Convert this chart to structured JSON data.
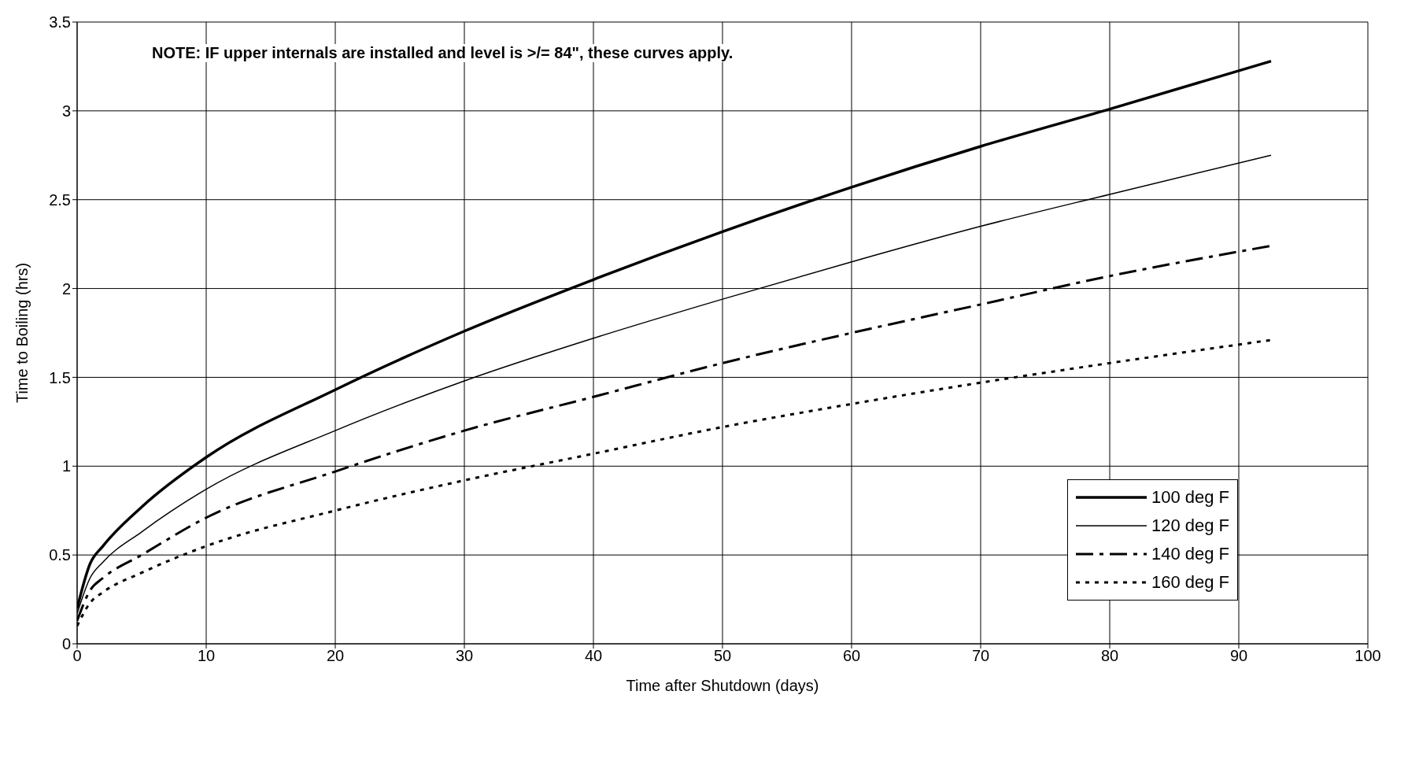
{
  "chart_data": {
    "type": "line",
    "xlabel": "Time after Shutdown  (days)",
    "ylabel": "Time to Boiling  (hrs)",
    "annotations": [
      "NOTE:  IF upper internals are installed and level is >/= 84\", these curves apply."
    ],
    "xlim": [
      0,
      100
    ],
    "xticks": [
      0,
      10,
      20,
      30,
      40,
      50,
      60,
      70,
      80,
      90,
      100
    ],
    "ylim": [
      0,
      3.5
    ],
    "yticks": [
      0,
      0.5,
      1,
      1.5,
      2,
      2.5,
      3,
      3.5
    ],
    "grid": true,
    "legend": "bottom right",
    "marker": "none",
    "series": [
      {
        "name": "100 deg F",
        "color": "#000000",
        "line_style": "solid",
        "x": [
          0,
          1,
          2,
          5,
          10,
          20,
          30,
          40,
          50,
          60,
          70,
          80,
          92.5
        ],
        "values": [
          0.2,
          0.45,
          0.55,
          0.77,
          1.05,
          1.43,
          1.76,
          2.05,
          2.32,
          2.57,
          2.8,
          3.01,
          3.28
        ]
      },
      {
        "name": "120 deg F",
        "color": "#000000",
        "line_style": "solid",
        "x": [
          0,
          1,
          2,
          5,
          10,
          20,
          30,
          40,
          50,
          60,
          70,
          80,
          92.5
        ],
        "values": [
          0.17,
          0.37,
          0.46,
          0.63,
          0.87,
          1.2,
          1.48,
          1.72,
          1.94,
          2.15,
          2.35,
          2.53,
          2.75
        ]
      },
      {
        "name": "140 deg F",
        "color": "#000000",
        "line_style": "dashed",
        "x": [
          0,
          1,
          2,
          5,
          10,
          20,
          30,
          40,
          50,
          60,
          70,
          80,
          92.5
        ],
        "values": [
          0.13,
          0.3,
          0.37,
          0.5,
          0.71,
          0.97,
          1.2,
          1.39,
          1.58,
          1.75,
          1.91,
          2.07,
          2.24
        ]
      },
      {
        "name": "160 deg F",
        "color": "#000000",
        "line_style": "dotted",
        "x": [
          0,
          1,
          2,
          5,
          10,
          20,
          30,
          40,
          50,
          60,
          70,
          80,
          92.5
        ],
        "values": [
          0.1,
          0.23,
          0.29,
          0.4,
          0.55,
          0.75,
          0.92,
          1.07,
          1.22,
          1.35,
          1.47,
          1.58,
          1.71
        ]
      }
    ]
  }
}
